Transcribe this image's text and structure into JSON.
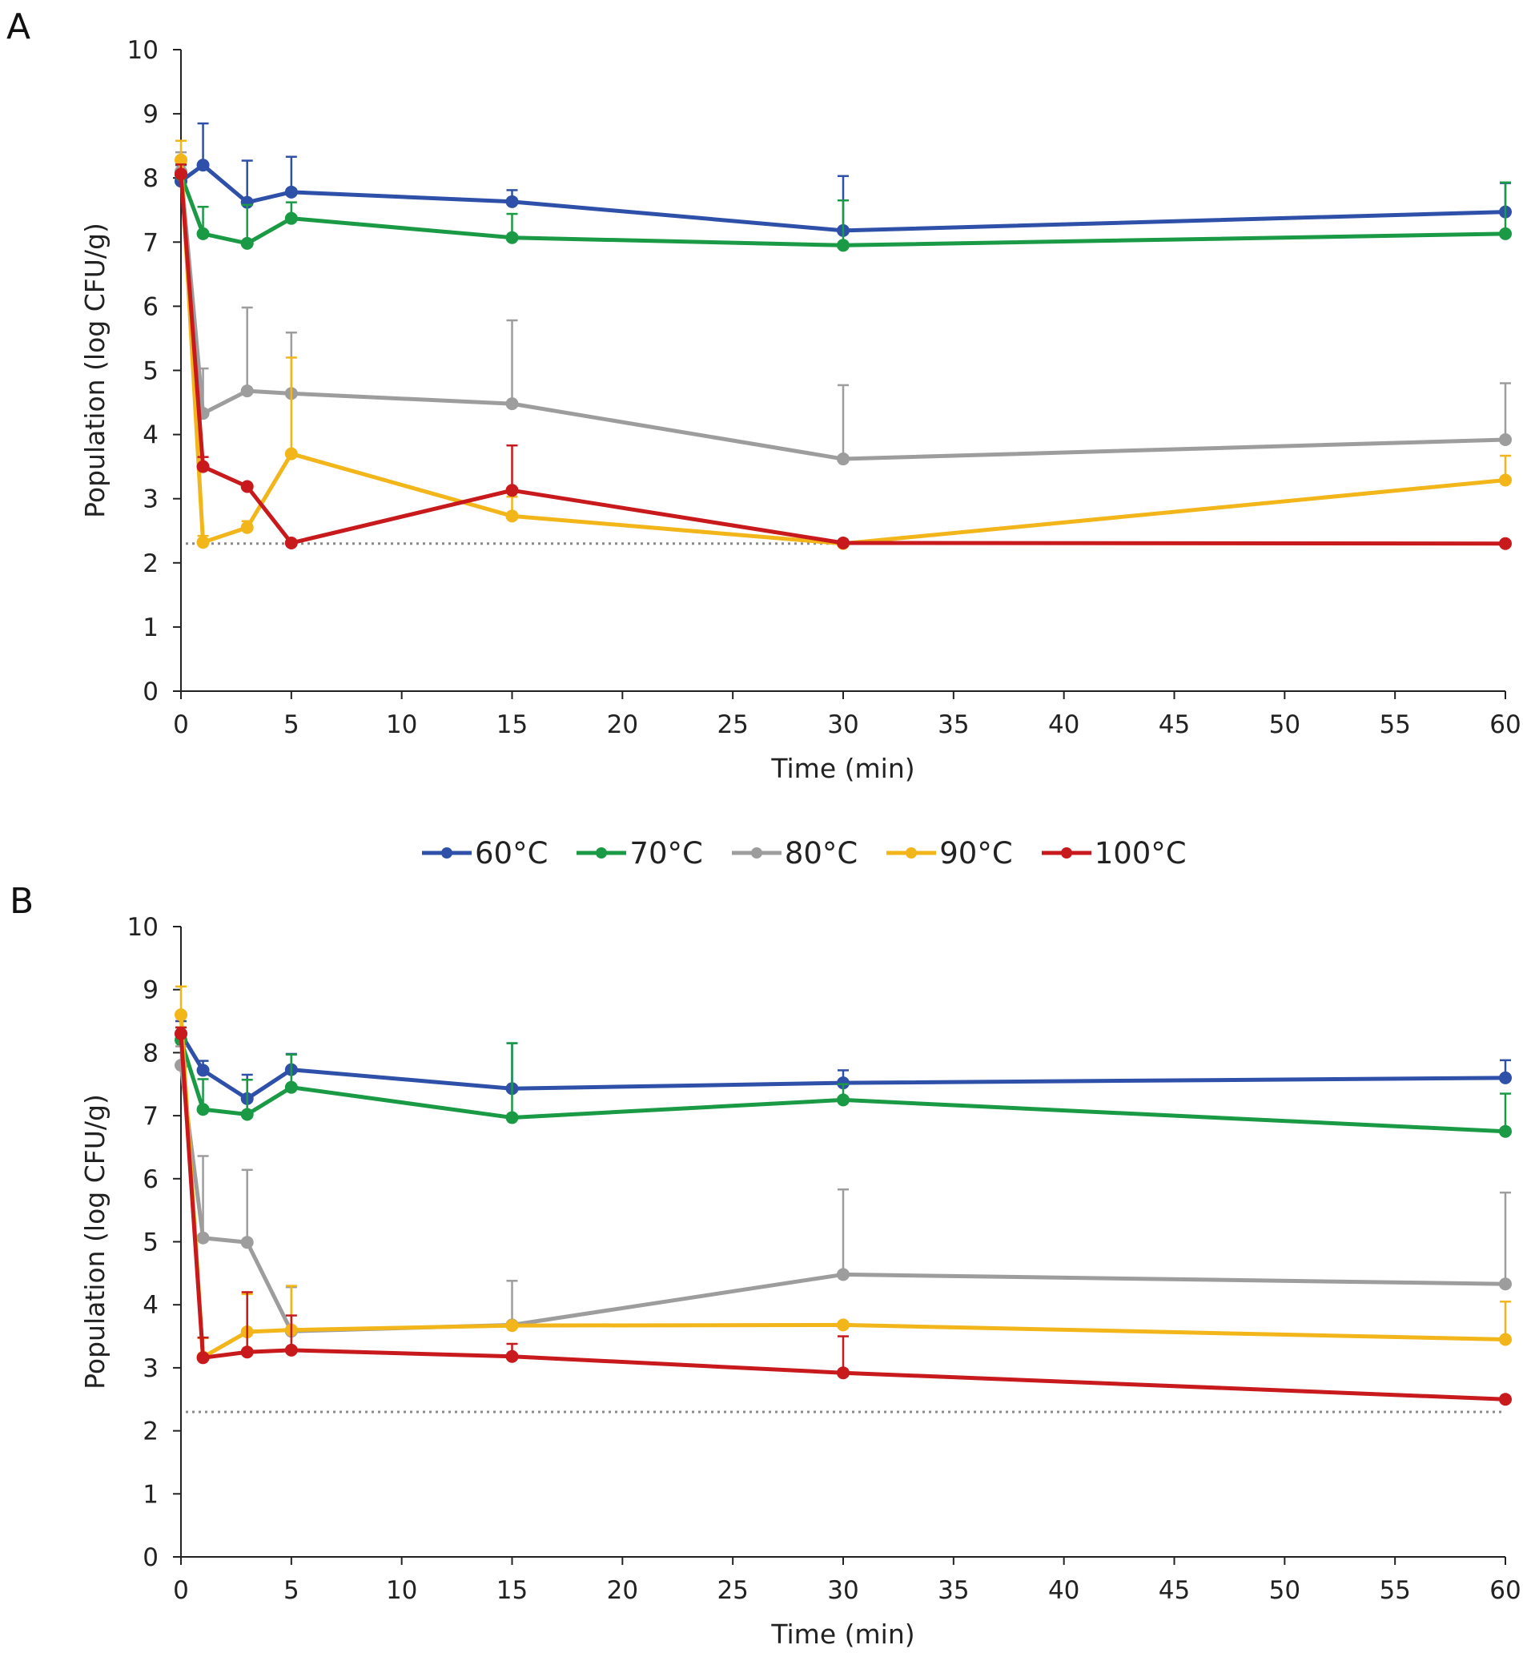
{
  "chart_data": [
    {
      "panel_label": "A",
      "type": "line",
      "xlabel": "Time (min)",
      "ylabel": "Population (log CFU/g)",
      "xlim": [
        0,
        60
      ],
      "ylim": [
        0,
        10
      ],
      "xticks": [
        "0",
        "5",
        "10",
        "15",
        "20",
        "25",
        "30",
        "35",
        "40",
        "45",
        "50",
        "55",
        "60"
      ],
      "yticks": [
        "0",
        "1",
        "2",
        "3",
        "4",
        "5",
        "6",
        "7",
        "8",
        "9",
        "10"
      ],
      "detection_limit": 2.3,
      "x": [
        0,
        1,
        3,
        5,
        15,
        30,
        60
      ],
      "series": [
        {
          "name": "60°C",
          "color": "#2e50a8",
          "values": [
            7.95,
            8.2,
            7.62,
            7.78,
            7.63,
            7.18,
            7.47
          ],
          "err": [
            0.25,
            0.65,
            0.65,
            0.55,
            0.18,
            0.85,
            0.45
          ]
        },
        {
          "name": "70°C",
          "color": "#1a9a45",
          "values": [
            8.05,
            7.13,
            6.98,
            7.37,
            7.07,
            6.95,
            7.13
          ],
          "err": [
            0.25,
            0.42,
            0.6,
            0.25,
            0.37,
            0.7,
            0.8
          ]
        },
        {
          "name": "80°C",
          "color": "#9d9d9d",
          "values": [
            8.1,
            4.33,
            4.68,
            4.64,
            4.48,
            3.62,
            3.92
          ],
          "err": [
            0.3,
            0.7,
            1.3,
            0.95,
            1.3,
            1.15,
            0.88
          ]
        },
        {
          "name": "90°C",
          "color": "#f2b51a",
          "values": [
            8.28,
            2.32,
            2.55,
            3.7,
            2.73,
            2.3,
            3.29
          ],
          "err": [
            0.3,
            0.1,
            0.1,
            1.5,
            0.3,
            0.0,
            0.38
          ]
        },
        {
          "name": "100°C",
          "color": "#c8191c",
          "values": [
            8.06,
            3.5,
            3.19,
            2.31,
            3.13,
            2.31,
            2.3
          ],
          "err": [
            0.15,
            0.15,
            0.0,
            0.0,
            0.7,
            0.0,
            0.0
          ]
        }
      ]
    },
    {
      "panel_label": "B",
      "type": "line",
      "xlabel": "Time (min)",
      "ylabel": "Population (log CFU/g)",
      "xlim": [
        0,
        60
      ],
      "ylim": [
        0,
        10
      ],
      "xticks": [
        "0",
        "5",
        "10",
        "15",
        "20",
        "25",
        "30",
        "35",
        "40",
        "45",
        "50",
        "55",
        "60"
      ],
      "yticks": [
        "0",
        "1",
        "2",
        "3",
        "4",
        "5",
        "6",
        "7",
        "8",
        "9",
        "10"
      ],
      "detection_limit": 2.3,
      "x": [
        0,
        1,
        3,
        5,
        15,
        30,
        60
      ],
      "series": [
        {
          "name": "60°C",
          "color": "#2e50a8",
          "values": [
            8.3,
            7.72,
            7.27,
            7.73,
            7.43,
            7.52,
            7.6
          ],
          "err": [
            0.2,
            0.15,
            0.38,
            0.25,
            0.72,
            0.2,
            0.28
          ]
        },
        {
          "name": "70°C",
          "color": "#1a9a45",
          "values": [
            8.2,
            7.1,
            7.02,
            7.45,
            6.97,
            7.25,
            6.75
          ],
          "err": [
            0.2,
            0.48,
            0.55,
            0.52,
            1.18,
            0.25,
            0.6
          ]
        },
        {
          "name": "80°C",
          "color": "#9d9d9d",
          "values": [
            7.8,
            5.06,
            4.99,
            3.58,
            3.68,
            4.48,
            4.33
          ],
          "err": [
            0.3,
            1.3,
            1.15,
            0.7,
            0.7,
            1.35,
            1.45
          ]
        },
        {
          "name": "90°C",
          "color": "#f2b51a",
          "values": [
            8.6,
            3.17,
            3.57,
            3.6,
            3.67,
            3.68,
            3.45
          ],
          "err": [
            0.45,
            0.3,
            0.6,
            0.7,
            0.0,
            0.0,
            0.6
          ]
        },
        {
          "name": "100°C",
          "color": "#c8191c",
          "values": [
            8.3,
            3.16,
            3.25,
            3.28,
            3.18,
            2.92,
            2.5
          ],
          "err": [
            0.1,
            0.32,
            0.95,
            0.55,
            0.2,
            0.58,
            0.0
          ]
        }
      ]
    }
  ],
  "legend": [
    {
      "label": "60°C",
      "color": "#2e50a8"
    },
    {
      "label": "70°C",
      "color": "#1a9a45"
    },
    {
      "label": "80°C",
      "color": "#9d9d9d"
    },
    {
      "label": "90°C",
      "color": "#f2b51a"
    },
    {
      "label": "100°C",
      "color": "#c8191c"
    }
  ]
}
